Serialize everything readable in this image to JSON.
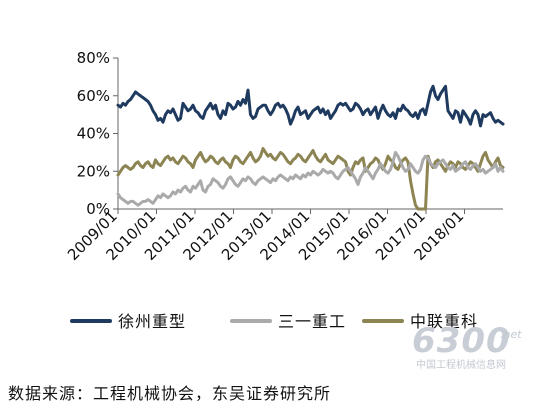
{
  "chart_data": {
    "type": "line",
    "title": "",
    "xlabel": "",
    "ylabel": "",
    "ylim": [
      0,
      80
    ],
    "yticks": [
      "0%",
      "20%",
      "40%",
      "60%",
      "80%"
    ],
    "x_tick_labels": [
      "2009/01",
      "2010/01",
      "2011/01",
      "2012/01",
      "2013/01",
      "2014/01",
      "2015/01",
      "2016/01",
      "2017/01",
      "2018/01"
    ],
    "x_start": "2009/01",
    "x_end": "2018/12",
    "grid": false,
    "legend_position": "bottom",
    "series": [
      {
        "name": "徐州重型",
        "color": "#1f3a5f",
        "values": [
          55,
          54,
          56,
          55,
          57,
          58,
          60,
          62,
          61,
          60,
          59,
          58,
          57,
          55,
          52,
          50,
          47,
          48,
          46,
          50,
          52,
          51,
          53,
          50,
          47,
          48,
          56,
          54,
          52,
          53,
          55,
          52,
          51,
          49,
          48,
          52,
          54,
          56,
          53,
          55,
          50,
          48,
          52,
          50,
          56,
          55,
          53,
          54,
          57,
          55,
          58,
          56,
          63,
          50,
          48,
          49,
          53,
          54,
          55,
          55,
          52,
          50,
          52,
          55,
          56,
          54,
          55,
          53,
          50,
          45,
          48,
          52,
          54,
          50,
          51,
          52,
          48,
          50,
          52,
          53,
          54,
          51,
          53,
          50,
          52,
          48,
          50,
          52,
          55,
          56,
          55,
          56,
          54,
          52,
          53,
          56,
          55,
          53,
          50,
          52,
          53,
          50,
          52,
          54,
          48,
          52,
          55,
          52,
          50,
          49,
          51,
          48,
          53,
          52,
          55,
          53,
          52,
          50,
          49,
          51,
          48,
          52,
          53,
          50,
          56,
          62,
          65,
          60,
          58,
          61,
          63,
          65,
          52,
          50,
          48,
          52,
          51,
          46,
          52,
          50,
          48,
          45,
          50,
          52,
          50,
          44,
          50,
          49,
          50,
          51,
          48,
          46,
          47,
          46,
          45
        ]
      },
      {
        "name": "三一重工",
        "color": "#aaaaaa",
        "values": [
          8,
          6,
          5,
          4,
          3,
          4,
          4,
          3,
          2,
          3,
          4,
          4,
          5,
          4,
          3,
          5,
          7,
          6,
          8,
          7,
          6,
          7,
          9,
          8,
          10,
          9,
          11,
          12,
          10,
          9,
          12,
          11,
          13,
          15,
          10,
          9,
          12,
          13,
          16,
          15,
          14,
          12,
          11,
          13,
          16,
          17,
          15,
          13,
          12,
          14,
          16,
          15,
          17,
          16,
          14,
          13,
          15,
          16,
          17,
          16,
          15,
          14,
          16,
          15,
          17,
          18,
          17,
          16,
          15,
          17,
          16,
          18,
          17,
          16,
          18,
          17,
          19,
          18,
          20,
          19,
          18,
          19,
          21,
          20,
          19,
          20,
          19,
          17,
          16,
          18,
          20,
          21,
          22,
          20,
          18,
          16,
          13,
          17,
          19,
          22,
          20,
          18,
          16,
          19,
          21,
          24,
          22,
          20,
          19,
          21,
          25,
          30,
          28,
          25,
          22,
          20,
          21,
          24,
          22,
          20,
          19,
          21,
          26,
          28,
          27,
          24,
          23,
          22,
          24,
          25,
          26,
          24,
          22,
          21,
          23,
          20,
          21,
          22,
          24,
          25,
          22,
          21,
          23,
          24,
          22,
          20,
          21,
          19,
          20,
          21,
          22,
          24,
          20,
          22,
          20
        ]
      },
      {
        "name": "中联重科",
        "color": "#8c8452",
        "values": [
          18,
          20,
          22,
          23,
          22,
          21,
          22,
          24,
          25,
          23,
          22,
          24,
          25,
          23,
          22,
          26,
          24,
          23,
          25,
          27,
          28,
          26,
          27,
          25,
          24,
          26,
          28,
          27,
          25,
          24,
          22,
          26,
          28,
          30,
          27,
          25,
          26,
          28,
          27,
          25,
          24,
          26,
          27,
          25,
          24,
          22,
          26,
          28,
          27,
          25,
          24,
          26,
          28,
          30,
          27,
          25,
          26,
          28,
          32,
          30,
          28,
          29,
          27,
          26,
          28,
          30,
          29,
          27,
          25,
          24,
          26,
          27,
          29,
          28,
          26,
          25,
          27,
          29,
          31,
          28,
          26,
          25,
          27,
          29,
          26,
          25,
          24,
          26,
          28,
          27,
          26,
          25,
          20,
          18,
          22,
          25,
          24,
          26,
          27,
          20,
          22,
          24,
          25,
          27,
          26,
          23,
          21,
          24,
          28,
          26,
          25,
          22,
          21,
          24,
          26,
          27,
          25,
          15,
          8,
          2,
          0,
          0,
          0,
          0,
          28,
          24,
          22,
          25,
          26,
          24,
          22,
          20,
          23,
          25,
          24,
          22,
          25,
          24,
          22,
          21,
          23,
          25,
          24,
          22,
          20,
          24,
          28,
          30,
          26,
          24,
          22,
          25,
          27,
          23,
          22
        ]
      }
    ]
  },
  "watermark": {
    "big": "6300",
    "net": ".net",
    "sub": "中国工程机械信息网"
  },
  "source_text": "数据来源：工程机械协会，东吴证券研究所"
}
